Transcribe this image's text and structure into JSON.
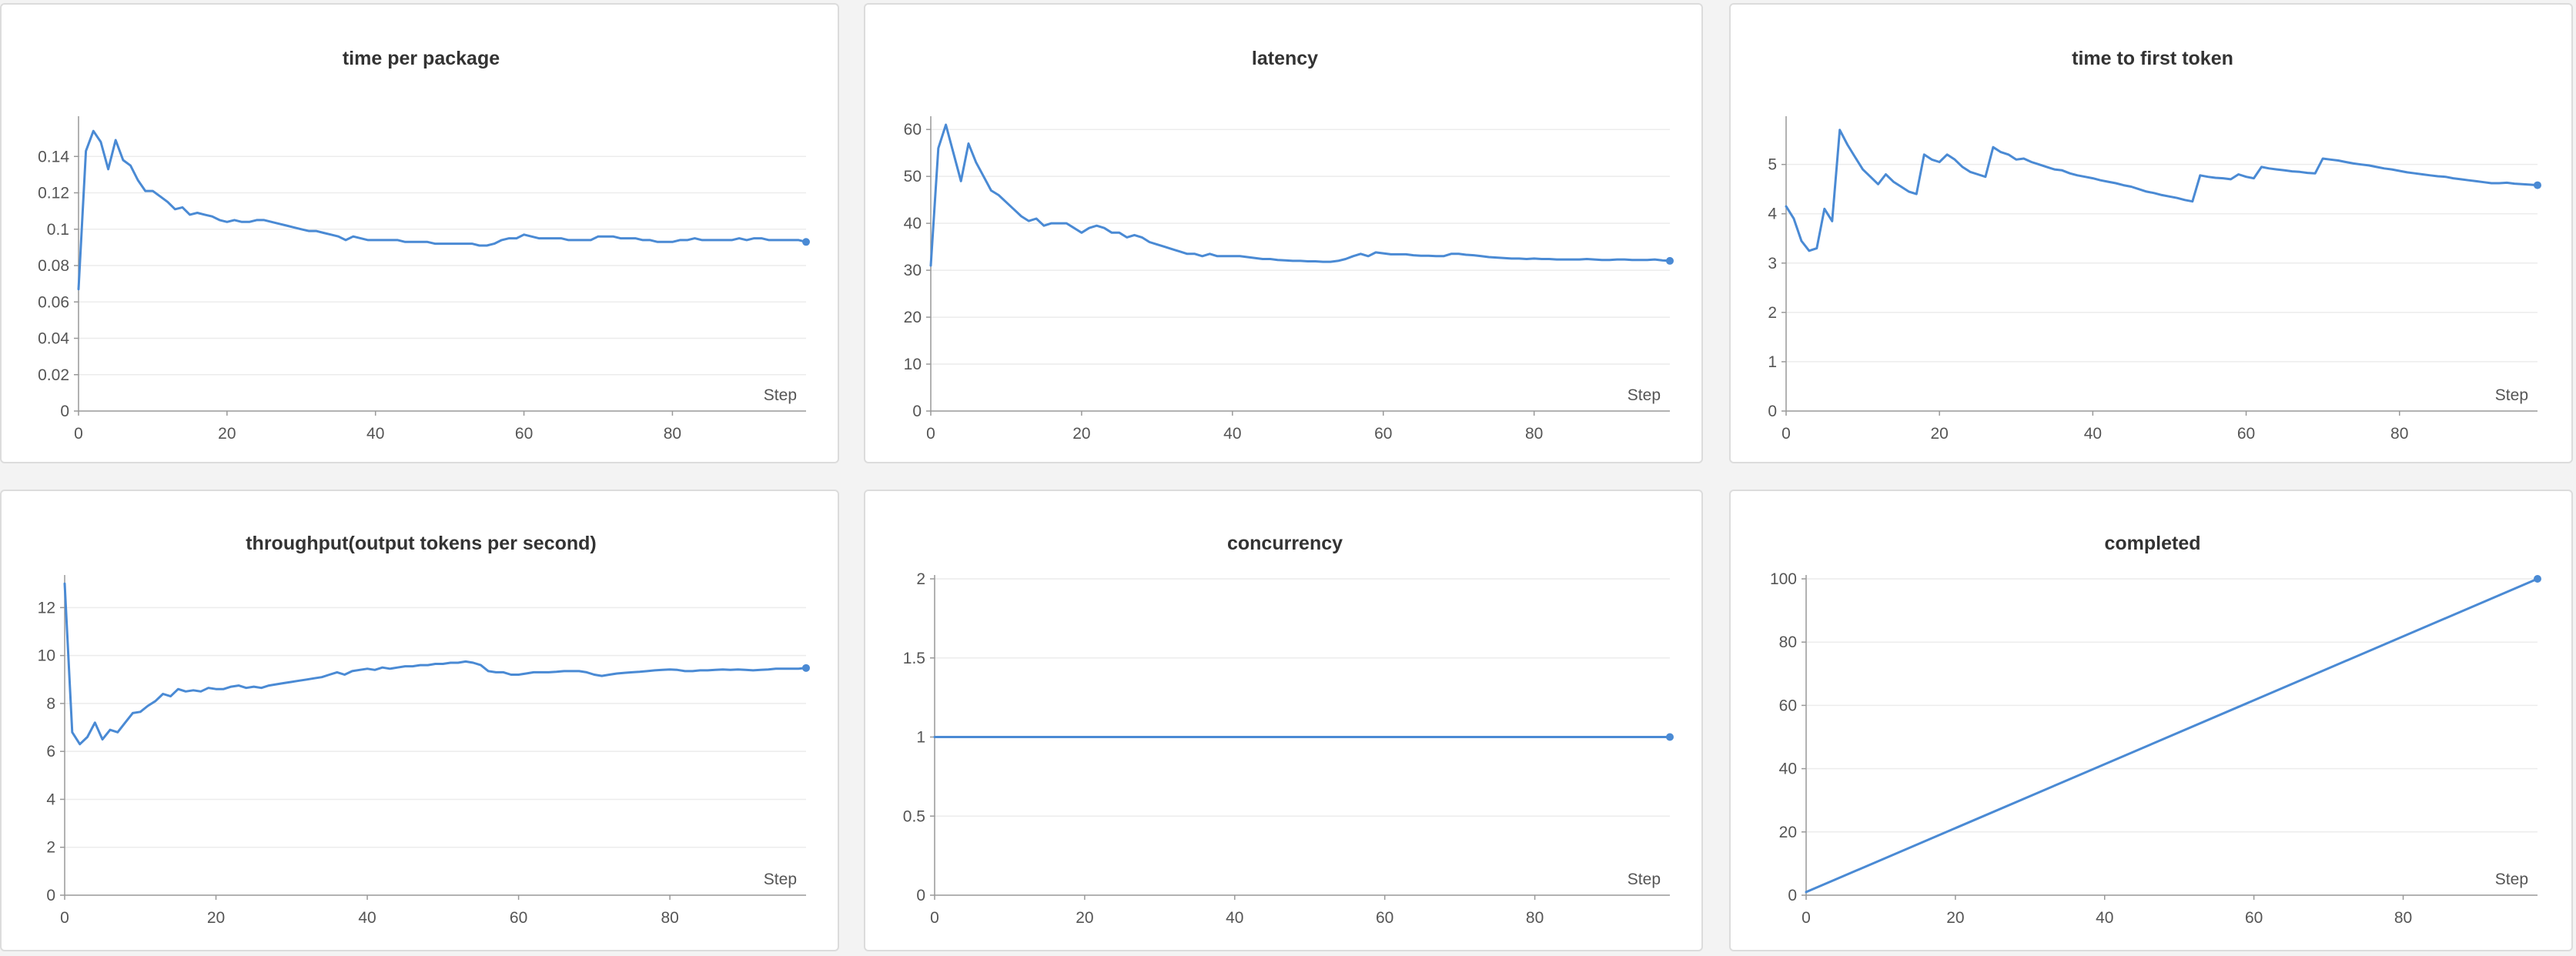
{
  "colors": {
    "line": "#4a8ad4",
    "grid": "#ececec",
    "axis": "#999999",
    "text": "#555555",
    "title": "#333333"
  },
  "chart_data": [
    {
      "type": "line",
      "title": "time per package",
      "xlabel": "Step",
      "xlim": [
        0,
        98
      ],
      "ylim": [
        0,
        0.16
      ],
      "yticks": [
        0,
        0.02,
        0.04,
        0.06,
        0.08,
        0.1,
        0.12,
        0.14
      ],
      "xticks": [
        0,
        20,
        40,
        60,
        80
      ],
      "grid": true,
      "series": [
        {
          "values": [
            0.067,
            0.143,
            0.154,
            0.148,
            0.133,
            0.149,
            0.138,
            0.135,
            0.127,
            0.121,
            0.121,
            0.118,
            0.115,
            0.111,
            0.112,
            0.108,
            0.109,
            0.108,
            0.107,
            0.105,
            0.104,
            0.105,
            0.104,
            0.104,
            0.105,
            0.105,
            0.104,
            0.103,
            0.102,
            0.101,
            0.1,
            0.099,
            0.099,
            0.098,
            0.097,
            0.096,
            0.094,
            0.096,
            0.095,
            0.094,
            0.094,
            0.094,
            0.094,
            0.094,
            0.093,
            0.093,
            0.093,
            0.093,
            0.092,
            0.092,
            0.092,
            0.092,
            0.092,
            0.092,
            0.091,
            0.091,
            0.092,
            0.094,
            0.095,
            0.095,
            0.097,
            0.096,
            0.095,
            0.095,
            0.095,
            0.095,
            0.094,
            0.094,
            0.094,
            0.094,
            0.096,
            0.096,
            0.096,
            0.095,
            0.095,
            0.095,
            0.094,
            0.094,
            0.093,
            0.093,
            0.093,
            0.094,
            0.094,
            0.095,
            0.094,
            0.094,
            0.094,
            0.094,
            0.094,
            0.095,
            0.094,
            0.095,
            0.095,
            0.094,
            0.094,
            0.094,
            0.094,
            0.094,
            0.093
          ]
        }
      ]
    },
    {
      "type": "line",
      "title": "latency",
      "xlabel": "Step",
      "xlim": [
        0,
        98
      ],
      "ylim": [
        0,
        62
      ],
      "yticks": [
        0,
        10,
        20,
        30,
        40,
        50,
        60
      ],
      "xticks": [
        0,
        20,
        40,
        60,
        80
      ],
      "grid": true,
      "series": [
        {
          "values": [
            31,
            56,
            61,
            55,
            49,
            57,
            53,
            50,
            47,
            46,
            44.5,
            43,
            41.5,
            40.5,
            41,
            39.5,
            40,
            40,
            40,
            39,
            38,
            39,
            39.5,
            39,
            38,
            38,
            37,
            37.5,
            37,
            36,
            35.5,
            35,
            34.5,
            34,
            33.5,
            33.5,
            33,
            33.5,
            33,
            33,
            33,
            33,
            32.8,
            32.6,
            32.4,
            32.4,
            32.2,
            32.1,
            32,
            32,
            31.9,
            31.9,
            31.8,
            31.8,
            32,
            32.4,
            33,
            33.5,
            33,
            33.8,
            33.6,
            33.4,
            33.4,
            33.4,
            33.2,
            33.1,
            33.1,
            33,
            33,
            33.5,
            33.5,
            33.3,
            33.2,
            33,
            32.8,
            32.7,
            32.6,
            32.5,
            32.5,
            32.4,
            32.5,
            32.4,
            32.4,
            32.3,
            32.3,
            32.3,
            32.3,
            32.4,
            32.3,
            32.2,
            32.2,
            32.3,
            32.3,
            32.2,
            32.2,
            32.2,
            32.3,
            32.1,
            32
          ]
        }
      ]
    },
    {
      "type": "line",
      "title": "time to first token",
      "xlabel": "Step",
      "xlim": [
        0,
        98
      ],
      "ylim": [
        0,
        5.9
      ],
      "yticks": [
        0,
        1,
        2,
        3,
        4,
        5
      ],
      "xticks": [
        0,
        20,
        40,
        60,
        80
      ],
      "grid": true,
      "series": [
        {
          "values": [
            4.15,
            3.9,
            3.45,
            3.25,
            3.3,
            4.1,
            3.85,
            5.7,
            5.4,
            5.15,
            4.9,
            4.75,
            4.6,
            4.8,
            4.65,
            4.55,
            4.45,
            4.4,
            5.2,
            5.1,
            5.05,
            5.2,
            5.1,
            4.95,
            4.85,
            4.8,
            4.75,
            5.35,
            5.25,
            5.2,
            5.1,
            5.12,
            5.05,
            5,
            4.95,
            4.9,
            4.88,
            4.82,
            4.78,
            4.75,
            4.72,
            4.68,
            4.65,
            4.62,
            4.58,
            4.55,
            4.5,
            4.45,
            4.42,
            4.38,
            4.35,
            4.32,
            4.28,
            4.25,
            4.78,
            4.75,
            4.73,
            4.72,
            4.7,
            4.8,
            4.75,
            4.72,
            4.95,
            4.92,
            4.9,
            4.88,
            4.86,
            4.85,
            4.83,
            4.82,
            5.12,
            5.1,
            5.08,
            5.05,
            5.02,
            5,
            4.98,
            4.95,
            4.92,
            4.9,
            4.87,
            4.84,
            4.82,
            4.8,
            4.78,
            4.76,
            4.75,
            4.72,
            4.7,
            4.68,
            4.66,
            4.64,
            4.62,
            4.62,
            4.63,
            4.61,
            4.6,
            4.59,
            4.58
          ]
        }
      ]
    },
    {
      "type": "line",
      "title": "throughput(output tokens per second)",
      "xlabel": "Step",
      "xlim": [
        0,
        98
      ],
      "ylim": [
        0,
        13.2
      ],
      "yticks": [
        0,
        2,
        4,
        6,
        8,
        10,
        12
      ],
      "xticks": [
        0,
        20,
        40,
        60,
        80
      ],
      "grid": true,
      "series": [
        {
          "values": [
            13,
            6.8,
            6.3,
            6.6,
            7.2,
            6.5,
            6.9,
            6.8,
            7.2,
            7.6,
            7.65,
            7.9,
            8.1,
            8.4,
            8.3,
            8.6,
            8.5,
            8.55,
            8.5,
            8.65,
            8.6,
            8.6,
            8.7,
            8.75,
            8.65,
            8.7,
            8.65,
            8.75,
            8.8,
            8.85,
            8.9,
            8.95,
            9,
            9.05,
            9.1,
            9.2,
            9.3,
            9.2,
            9.35,
            9.4,
            9.45,
            9.4,
            9.5,
            9.45,
            9.5,
            9.55,
            9.55,
            9.6,
            9.6,
            9.65,
            9.65,
            9.7,
            9.7,
            9.75,
            9.7,
            9.6,
            9.35,
            9.3,
            9.3,
            9.2,
            9.2,
            9.25,
            9.3,
            9.3,
            9.3,
            9.32,
            9.35,
            9.35,
            9.35,
            9.3,
            9.2,
            9.15,
            9.2,
            9.25,
            9.28,
            9.3,
            9.32,
            9.35,
            9.38,
            9.4,
            9.42,
            9.4,
            9.35,
            9.35,
            9.38,
            9.38,
            9.4,
            9.42,
            9.4,
            9.42,
            9.4,
            9.38,
            9.4,
            9.42,
            9.45,
            9.45,
            9.45,
            9.45,
            9.48
          ]
        }
      ]
    },
    {
      "type": "line",
      "title": "concurrency",
      "xlabel": "Step",
      "xlim": [
        0,
        98
      ],
      "ylim": [
        0,
        2
      ],
      "yticks": [
        0,
        0.5,
        1,
        1.5,
        2
      ],
      "xticks": [
        0,
        20,
        40,
        60,
        80
      ],
      "grid": true,
      "series": [
        {
          "x": [
            0,
            98
          ],
          "values": [
            1,
            1
          ]
        }
      ]
    },
    {
      "type": "line",
      "title": "completed",
      "xlabel": "Step",
      "xlim": [
        0,
        98
      ],
      "ylim": [
        0,
        100
      ],
      "yticks": [
        0,
        20,
        40,
        60,
        80,
        100
      ],
      "xticks": [
        0,
        20,
        40,
        60,
        80
      ],
      "grid": true,
      "series": [
        {
          "x": [
            0,
            98
          ],
          "values": [
            1,
            100
          ]
        }
      ]
    }
  ]
}
